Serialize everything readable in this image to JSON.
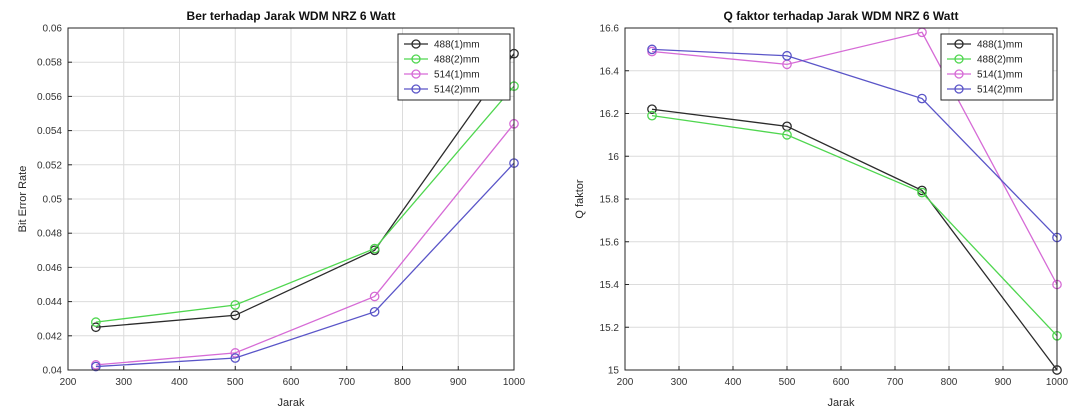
{
  "colors": {
    "s488_1": "#2b2b2b",
    "s488_2": "#4fd64f",
    "s514_1": "#d66bd6",
    "s514_2": "#5a55c8",
    "grid": "#dcdcdc",
    "axis": "#262626"
  },
  "chart_data": [
    {
      "type": "line",
      "title": "Ber terhadap Jarak WDM NRZ 6 Watt",
      "xlabel": "Jarak",
      "ylabel": "Bit Error Rate",
      "x": [
        250,
        500,
        750,
        1000
      ],
      "xlim": [
        200,
        1000
      ],
      "ylim": [
        0.04,
        0.06
      ],
      "xticks": [
        200,
        300,
        400,
        500,
        600,
        700,
        800,
        900,
        1000
      ],
      "yticks": [
        0.04,
        0.042,
        0.044,
        0.046,
        0.048,
        0.05,
        0.052,
        0.054,
        0.056,
        0.058,
        0.06
      ],
      "ytick_labels": [
        "0.04",
        "0.042",
        "0.044",
        "0.046",
        "0.048",
        "0.05",
        "0.052",
        "0.054",
        "0.056",
        "0.058",
        "0.06"
      ],
      "grid": true,
      "legend_position": "top-right",
      "series": [
        {
          "name": "488(1)mm",
          "color_key": "s488_1",
          "values": [
            0.0425,
            0.0432,
            0.047,
            0.0585
          ]
        },
        {
          "name": "488(2)mm",
          "color_key": "s488_2",
          "values": [
            0.0428,
            0.0438,
            0.0471,
            0.0566
          ]
        },
        {
          "name": "514(1)mm",
          "color_key": "s514_1",
          "values": [
            0.0403,
            0.041,
            0.0443,
            0.0544
          ]
        },
        {
          "name": "514(2)mm",
          "color_key": "s514_2",
          "values": [
            0.0402,
            0.0407,
            0.0434,
            0.0521
          ]
        }
      ]
    },
    {
      "type": "line",
      "title": "Q faktor terhadap Jarak WDM NRZ 6 Watt",
      "xlabel": "Jarak",
      "ylabel": "Q faktor",
      "x": [
        250,
        500,
        750,
        1000
      ],
      "xlim": [
        200,
        1000
      ],
      "ylim": [
        15,
        16.6
      ],
      "xticks": [
        200,
        300,
        400,
        500,
        600,
        700,
        800,
        900,
        1000
      ],
      "yticks": [
        15,
        15.2,
        15.4,
        15.6,
        15.8,
        16,
        16.2,
        16.4,
        16.6
      ],
      "ytick_labels": [
        "15",
        "15.2",
        "15.4",
        "15.6",
        "15.8",
        "16",
        "16.2",
        "16.4",
        "16.6"
      ],
      "grid": true,
      "legend_position": "top-right",
      "series": [
        {
          "name": "488(1)mm",
          "color_key": "s488_1",
          "values": [
            16.22,
            16.14,
            15.84,
            15.0
          ]
        },
        {
          "name": "488(2)mm",
          "color_key": "s488_2",
          "values": [
            16.19,
            16.1,
            15.83,
            15.16
          ]
        },
        {
          "name": "514(1)mm",
          "color_key": "s514_1",
          "values": [
            16.49,
            16.43,
            16.58,
            15.4
          ]
        },
        {
          "name": "514(2)mm",
          "color_key": "s514_2",
          "values": [
            16.5,
            16.47,
            16.27,
            15.62
          ]
        }
      ]
    }
  ]
}
